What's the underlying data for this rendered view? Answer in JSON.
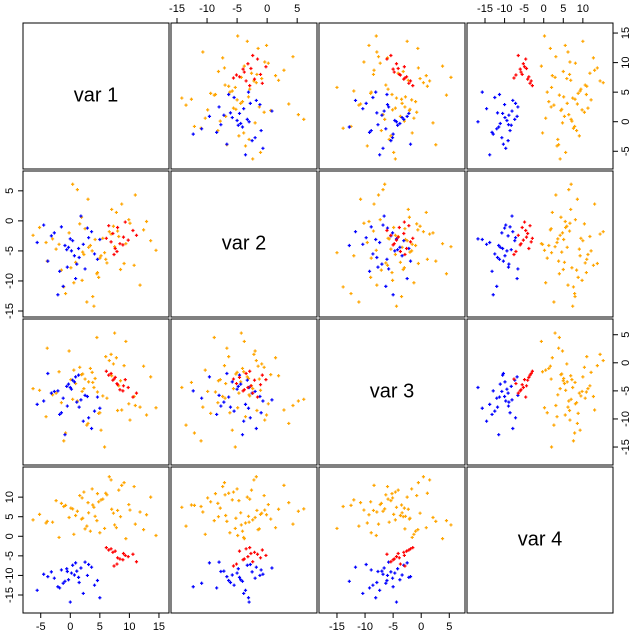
{
  "chart_data": {
    "type": "scatter_matrix",
    "variables": [
      "var 1",
      "var 2",
      "var 3",
      "var 4"
    ],
    "lims": [
      [
        -8,
        16.7
      ],
      [
        -16,
        8.3
      ],
      [
        -18.2,
        7.8
      ],
      [
        -19.6,
        17.7
      ]
    ],
    "ticks": [
      [
        -5,
        0,
        5,
        10,
        15
      ],
      [
        -15,
        -10,
        -5,
        0,
        5
      ],
      [
        -15,
        -10,
        -5,
        0,
        5
      ],
      [
        -15,
        -10,
        -5,
        0,
        5,
        10
      ]
    ],
    "series": [
      {
        "color": "#ffa500",
        "values": [
          [
            4.2,
            -1.5,
            7.8,
            2.3,
            10.1,
            0.6,
            5.5,
            -3.9,
            8.7,
            3.1,
            12.4,
            -0.8,
            6.2,
            1.9,
            9.4,
            4.8,
            -5.2,
            3.7,
            11.0,
            0.1,
            6.9,
            2.8,
            -2.4,
            7.3,
            5.0,
            13.6,
            1.2,
            4.5,
            8.2,
            -1.1,
            3.4,
            9.9,
            0.9,
            6.6,
            -4.1,
            2.0,
            7.0,
            5.8,
            10.8,
            -0.2,
            4.0,
            14.5,
            1.6,
            8.5,
            3.0,
            -3.0,
            6.0,
            11.8,
            2.5,
            5.2,
            -6.3,
            9.1,
            0.4,
            7.5,
            3.8,
            12.9,
            -1.9,
            4.6,
            8.0,
            2.1
          ],
          [
            -3.1,
            -8.2,
            1.4,
            -5.6,
            -0.4,
            -10.3,
            -2.9,
            -6.7,
            2.8,
            -4.4,
            -1.5,
            -12.1,
            -7.0,
            0.6,
            -3.8,
            -9.4,
            -1.1,
            -5.0,
            4.3,
            -7.8,
            -2.2,
            -13.5,
            -4.7,
            -0.9,
            -6.2,
            -3.3,
            5.2,
            -8.8,
            -2.6,
            -11.0,
            -4.1,
            0.2,
            -6.9,
            -1.8,
            -3.6,
            -9.9,
            1.9,
            -5.3,
            -7.4,
            -2.0,
            -14.2,
            -4.9,
            -0.5,
            -8.1,
            3.6,
            -3.0,
            -6.4,
            -10.7,
            -1.3,
            -5.8,
            -2.4,
            -7.1,
            6.1,
            -4.3,
            -12.6,
            -0.1,
            -3.9,
            -8.6,
            -1.7,
            -5.2
          ],
          [
            -2.8,
            -7.1,
            0.9,
            -4.6,
            -10.2,
            -1.3,
            -5.9,
            2.6,
            -8.4,
            -3.4,
            -0.6,
            -12.5,
            -6.3,
            -2.1,
            3.8,
            -9.0,
            -4.9,
            -1.7,
            -7.6,
            -3.0,
            1.5,
            -11.1,
            -5.4,
            -0.2,
            -8.9,
            -2.5,
            -6.8,
            4.5,
            -4.1,
            -13.9,
            -1.0,
            -7.3,
            -3.7,
            0.4,
            -9.6,
            -5.1,
            -2.3,
            -15.0,
            -6.0,
            2.1,
            -4.4,
            -8.0,
            -0.8,
            -3.2,
            -10.8,
            -5.7,
            1.1,
            -7.9,
            -2.9,
            -12.0,
            -4.6,
            -0.5,
            -6.5,
            5.3,
            -3.5,
            -9.3,
            -1.6,
            -5.2,
            -8.5,
            -2.0
          ],
          [
            5.1,
            8.4,
            2.2,
            11.3,
            6.7,
            0.5,
            9.5,
            3.8,
            13.0,
            6.0,
            1.7,
            7.9,
            10.6,
            4.4,
            -0.6,
            8.8,
            5.6,
            12.1,
            3.1,
            7.2,
            14.4,
            2.6,
            9.1,
            5.9,
            0.9,
            10.0,
            6.4,
            4.0,
            11.8,
            7.6,
            1.3,
            8.1,
            5.3,
            15.2,
            3.4,
            9.8,
            6.9,
            2.0,
            12.7,
            4.8,
            7.4,
            0.2,
            10.4,
            5.0,
            8.6,
            3.6,
            11.0,
            6.2,
            1.9,
            9.3,
            4.2,
            13.7,
            7.0,
            2.9,
            8.0,
            5.5,
            -0.3,
            10.9,
            6.6,
            4.6
          ]
        ]
      },
      {
        "color": "#0000ff",
        "values": [
          [
            -3.2,
            1.5,
            0.4,
            -1.8,
            2.9,
            -0.6,
            4.1,
            -4.5,
            0.9,
            2.2,
            -2.7,
            1.1,
            -0.3,
            3.6,
            -1.2,
            0.2,
            5.0,
            -3.8,
            1.8,
            -0.9,
            2.5,
            -5.6,
            0.7,
            3.1,
            -2.1,
            1.4,
            -1.5,
            4.6,
            0.0,
            -0.5
          ],
          [
            -2.5,
            -6.1,
            -3.3,
            -8.4,
            -1.2,
            -4.8,
            -5.5,
            -0.7,
            -9.6,
            -3.9,
            -2.0,
            -7.2,
            -4.4,
            -1.8,
            -10.9,
            -5.0,
            -3.1,
            -6.7,
            0.8,
            -4.1,
            -8.0,
            -3.6,
            -5.8,
            -2.8,
            -12.3,
            -4.6,
            -1.0,
            -6.4,
            -3.0,
            -7.7
          ],
          [
            -5.4,
            -7.9,
            -3.1,
            -9.2,
            -6.0,
            -4.2,
            -8.6,
            -6.8,
            -2.5,
            -10.4,
            -5.1,
            -7.0,
            -3.8,
            -11.7,
            -6.3,
            -4.7,
            -8.1,
            -1.9,
            -6.6,
            -12.8,
            -5.8,
            -7.4,
            -3.4,
            -9.8,
            -5.0,
            -2.2,
            -8.9,
            -6.1,
            -4.4,
            -7.7
          ],
          [
            -9.1,
            -11.8,
            -7.4,
            -13.2,
            -10.0,
            -8.3,
            -12.5,
            -9.7,
            -6.8,
            -14.6,
            -10.7,
            -8.9,
            -11.1,
            -7.9,
            -12.0,
            -9.4,
            -15.7,
            -10.3,
            -8.1,
            -11.5,
            -6.6,
            -13.8,
            -9.9,
            -7.2,
            -12.9,
            -10.5,
            -8.6,
            -11.3,
            -16.8,
            -9.0
          ]
        ]
      },
      {
        "color": "#ff0000",
        "values": [
          [
            7.2,
            8.9,
            6.5,
            9.8,
            7.9,
            10.6,
            6.1,
            8.4,
            9.3,
            7.6,
            11.2,
            8.0,
            6.9,
            9.0,
            7.4
          ],
          [
            -2.1,
            -4.0,
            -0.8,
            -3.2,
            -5.1,
            -1.6,
            -2.9,
            -3.8,
            -0.2,
            -4.6,
            -2.4,
            -1.1,
            -3.5,
            -2.7,
            -5.6
          ],
          [
            -3.1,
            -5.0,
            -2.2,
            -4.4,
            -3.7,
            -6.1,
            -1.5,
            -4.8,
            -3.0,
            -2.6,
            -5.4,
            -3.9,
            -1.9,
            -4.1,
            -2.9
          ],
          [
            -4.1,
            -6.0,
            -3.5,
            -5.2,
            -7.1,
            -4.6,
            -2.9,
            -5.8,
            -4.9,
            -3.8,
            -6.5,
            -5.5,
            -3.2,
            -4.4,
            -7.6
          ]
        ]
      }
    ]
  }
}
